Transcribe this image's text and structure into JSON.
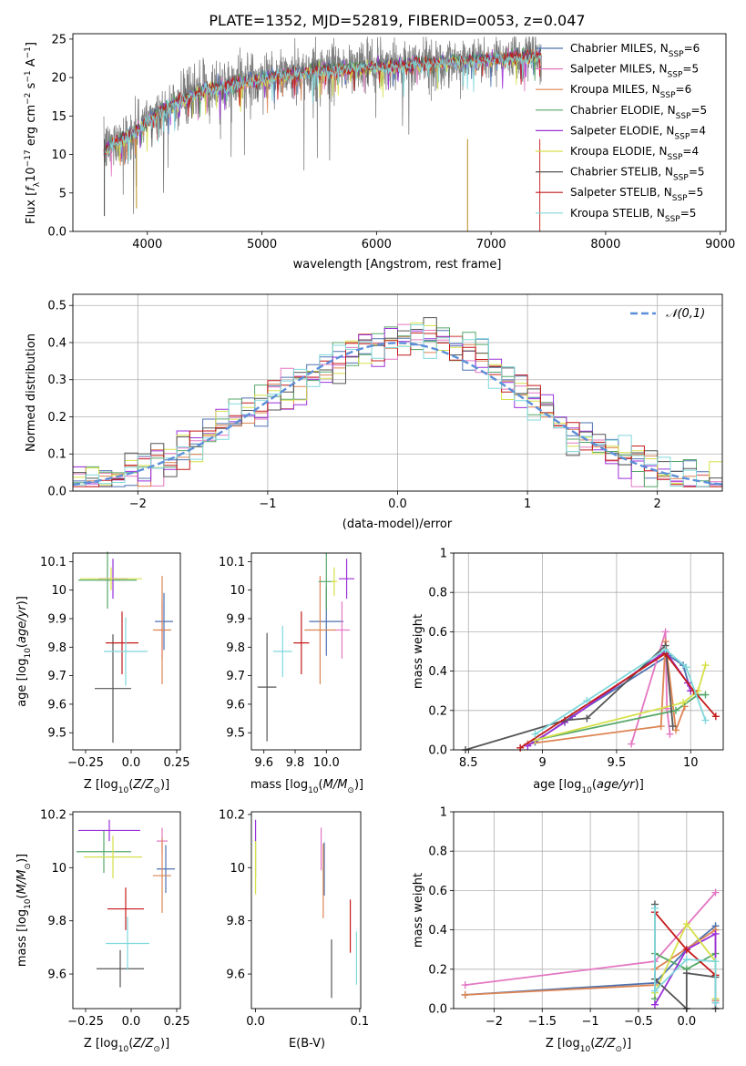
{
  "figure_title": "PLATE=1352, MJD=52819, FIBERID=0053, z=0.047",
  "colors": {
    "Chabrier MILES": "#4c72b0",
    "Salpeter MILES": "#e377c2",
    "Kroupa MILES": "#dd8452",
    "Chabrier ELODIE": "#55a868",
    "Salpeter ELODIE": "#9b30d9",
    "Kroupa ELODIE": "#d6e04a",
    "Chabrier STELIB": "#555555",
    "Salpeter STELIB": "#c41a1a",
    "Kroupa STELIB": "#80d8dc",
    "normal": "#5b8fd9",
    "spectrum": "#808080"
  },
  "legend_spectrum": [
    {
      "name": "Chabrier MILES",
      "nssp": "6"
    },
    {
      "name": "Salpeter MILES",
      "nssp": "5"
    },
    {
      "name": "Kroupa MILES",
      "nssp": "6"
    },
    {
      "name": "Chabrier ELODIE",
      "nssp": "5"
    },
    {
      "name": "Salpeter ELODIE",
      "nssp": "4"
    },
    {
      "name": "Kroupa ELODIE",
      "nssp": "4"
    },
    {
      "name": "Chabrier STELIB",
      "nssp": "5"
    },
    {
      "name": "Salpeter STELIB",
      "nssp": "5"
    },
    {
      "name": "Kroupa STELIB",
      "nssp": "5"
    }
  ],
  "chart_data": [
    {
      "id": "spectrum",
      "type": "line",
      "xlabel": "wavelength [Angstrom, rest frame]",
      "ylabel": "Flux [f_λ10^-17 erg cm^-2 s^-1 A^-1]",
      "xlim": [
        3350,
        9050
      ],
      "ylim": [
        0,
        25.7
      ],
      "xticks": [
        4000,
        5000,
        6000,
        7000,
        8000,
        9000
      ],
      "yticks": [
        0,
        5,
        10,
        15,
        20,
        25
      ],
      "x_range_data": [
        3620,
        7440
      ],
      "continuum": {
        "x": [
          3620,
          3700,
          3900,
          4000,
          4200,
          4500,
          5000,
          5500,
          6000,
          6500,
          7000,
          7440
        ],
        "y": [
          10.5,
          11.5,
          13.0,
          14.5,
          16.5,
          18.5,
          20.0,
          21.0,
          21.5,
          22.0,
          22.5,
          23.0
        ]
      },
      "grid": false
    },
    {
      "id": "residuals",
      "type": "histogram",
      "xlabel": "(data-model)/error",
      "ylabel": "Normed distribution",
      "xlim": [
        -2.5,
        2.5
      ],
      "ylim": [
        0,
        0.53
      ],
      "xticks": [
        -2,
        -1,
        0,
        1,
        2
      ],
      "yticks": [
        0.0,
        0.1,
        0.2,
        0.3,
        0.4,
        0.5
      ],
      "bin_width": 0.1,
      "normal_label": "𝒩(0,1)",
      "grid": true,
      "legend": "top-right"
    },
    {
      "id": "age_vs_Z",
      "type": "errorbar",
      "xlabel": "Z [log10(Z/Z☉)]",
      "ylabel": "age [log10(age/yr)]",
      "xlim": [
        -0.32,
        0.27
      ],
      "ylim": [
        9.44,
        10.13
      ],
      "xticks": [
        -0.25,
        0.0,
        0.25
      ],
      "yticks": [
        9.5,
        9.6,
        9.7,
        9.8,
        9.9,
        10.0,
        10.1
      ],
      "points": [
        {
          "series": "Chabrier MILES",
          "x": 0.18,
          "xerr": 0.05,
          "y": 9.89,
          "yerr": 0.1
        },
        {
          "series": "Salpeter MILES",
          "x": 0.17,
          "xerr": 0.02,
          "y": 9.86,
          "yerr": 0.1
        },
        {
          "series": "Kroupa MILES",
          "x": 0.17,
          "xerr": 0.05,
          "y": 9.86,
          "yerr": 0.19
        },
        {
          "series": "Chabrier ELODIE",
          "x": -0.13,
          "xerr": 0.16,
          "y": 10.035,
          "yerr": 0.1
        },
        {
          "series": "Salpeter ELODIE",
          "x": -0.1,
          "xerr": 0.08,
          "y": 10.04,
          "yerr": 0.07
        },
        {
          "series": "Kroupa ELODIE",
          "x": -0.11,
          "xerr": 0.17,
          "y": 10.04,
          "yerr": 0.04
        },
        {
          "series": "Chabrier STELIB",
          "x": -0.1,
          "xerr": 0.1,
          "y": 9.655,
          "yerr": 0.19
        },
        {
          "series": "Salpeter STELIB",
          "x": -0.05,
          "xerr": 0.09,
          "y": 9.815,
          "yerr": 0.11
        },
        {
          "series": "Kroupa STELIB",
          "x": -0.03,
          "xerr": 0.12,
          "y": 9.785,
          "yerr": 0.12
        }
      ]
    },
    {
      "id": "age_vs_mass",
      "type": "errorbar",
      "xlabel": "mass [log10(M/M☉)]",
      "xlim": [
        9.52,
        10.22
      ],
      "ylim": [
        9.44,
        10.13
      ],
      "xticks": [
        9.6,
        9.8,
        10.0
      ],
      "xticklabels": [
        "9.6",
        "9.8",
        "10.0"
      ],
      "yticks": [
        9.5,
        9.6,
        9.7,
        9.8,
        9.9,
        10.0,
        10.1
      ],
      "points": [
        {
          "series": "Chabrier MILES",
          "x": 10.0,
          "xerr": 0.11,
          "y": 9.89,
          "yerr": 0.12
        },
        {
          "series": "Salpeter MILES",
          "x": 10.1,
          "xerr": 0.05,
          "y": 9.86,
          "yerr": 0.1
        },
        {
          "series": "Kroupa MILES",
          "x": 9.96,
          "xerr": 0.1,
          "y": 9.86,
          "yerr": 0.19
        },
        {
          "series": "Chabrier ELODIE",
          "x": 10.0,
          "xerr": 0.05,
          "y": 10.03,
          "yerr": 0.1
        },
        {
          "series": "Salpeter ELODIE",
          "x": 10.13,
          "xerr": 0.05,
          "y": 10.04,
          "yerr": 0.07
        },
        {
          "series": "Kroupa ELODIE",
          "x": 10.05,
          "xerr": 0.02,
          "y": 10.03,
          "yerr": 0.05
        },
        {
          "series": "Chabrier STELIB",
          "x": 9.62,
          "xerr": 0.06,
          "y": 9.66,
          "yerr": 0.19
        },
        {
          "series": "Salpeter STELIB",
          "x": 9.84,
          "xerr": 0.05,
          "y": 9.815,
          "yerr": 0.11
        },
        {
          "series": "Kroupa STELIB",
          "x": 9.72,
          "xerr": 0.06,
          "y": 9.785,
          "yerr": 0.09
        }
      ]
    },
    {
      "id": "mass_weight_vs_age",
      "type": "line",
      "xlabel": "age [log10(age/yr)]",
      "ylabel": "mass weight",
      "xlim": [
        8.4,
        10.22
      ],
      "ylim": [
        0.0,
        1.0
      ],
      "xticks": [
        8.5,
        9.0,
        9.5,
        10.0
      ],
      "yticks": [
        0.0,
        0.2,
        0.4,
        0.6,
        0.8,
        1.0
      ],
      "grid": true,
      "series": [
        {
          "name": "Chabrier MILES",
          "x": [
            8.95,
            9.2,
            9.85,
            9.95,
            10.0
          ],
          "y": [
            0.04,
            0.17,
            0.48,
            0.43,
            0.3
          ]
        },
        {
          "name": "Salpeter MILES",
          "x": [
            9.6,
            9.83,
            9.84,
            9.86
          ],
          "y": [
            0.03,
            0.6,
            0.21,
            0.08
          ]
        },
        {
          "name": "Kroupa MILES",
          "x": [
            8.9,
            9.8,
            9.83,
            9.9,
            9.96
          ],
          "y": [
            0.03,
            0.12,
            0.55,
            0.1,
            0.22
          ]
        },
        {
          "name": "Chabrier ELODIE",
          "x": [
            8.95,
            9.9,
            10.05,
            10.1
          ],
          "y": [
            0.05,
            0.2,
            0.28,
            0.28
          ]
        },
        {
          "name": "Salpeter ELODIE",
          "x": [
            8.9,
            9.15,
            9.83,
            9.98,
            10.0
          ],
          "y": [
            0.02,
            0.14,
            0.5,
            0.34,
            0.3
          ]
        },
        {
          "name": "Kroupa ELODIE",
          "x": [
            8.95,
            9.95,
            10.05,
            10.1
          ],
          "y": [
            0.05,
            0.24,
            0.3,
            0.43
          ]
        },
        {
          "name": "Chabrier STELIB",
          "x": [
            8.48,
            9.15,
            9.3,
            9.83,
            9.88
          ],
          "y": [
            0.0,
            0.15,
            0.16,
            0.53,
            0.12
          ]
        },
        {
          "name": "Salpeter STELIB",
          "x": [
            8.85,
            9.83,
            10.02,
            10.17
          ],
          "y": [
            0.01,
            0.49,
            0.3,
            0.17
          ]
        },
        {
          "name": "Kroupa STELIB",
          "x": [
            8.95,
            9.3,
            9.83,
            9.97,
            10.1
          ],
          "y": [
            0.08,
            0.25,
            0.51,
            0.42,
            0.15
          ]
        }
      ]
    },
    {
      "id": "mass_vs_Z",
      "type": "errorbar",
      "xlabel": "Z [log10(Z/Z☉)]",
      "ylabel": "mass [log10(M/M☉)]",
      "xlim": [
        -0.32,
        0.27
      ],
      "ylim": [
        9.47,
        10.21
      ],
      "xticks": [
        -0.25,
        0.0,
        0.25
      ],
      "yticks": [
        9.6,
        9.8,
        10.0,
        10.2
      ],
      "points": [
        {
          "series": "Chabrier MILES",
          "x": 0.19,
          "xerr": 0.05,
          "y": 9.995,
          "yerr": 0.09
        },
        {
          "series": "Salpeter MILES",
          "x": 0.17,
          "xerr": 0.03,
          "y": 10.1,
          "yerr": 0.05
        },
        {
          "series": "Kroupa MILES",
          "x": 0.17,
          "xerr": 0.05,
          "y": 9.97,
          "yerr": 0.14
        },
        {
          "series": "Chabrier ELODIE",
          "x": -0.15,
          "xerr": 0.15,
          "y": 10.06,
          "yerr": 0.08
        },
        {
          "series": "Salpeter ELODIE",
          "x": -0.12,
          "xerr": 0.17,
          "y": 10.14,
          "yerr": 0.04
        },
        {
          "series": "Kroupa ELODIE",
          "x": -0.1,
          "xerr": 0.16,
          "y": 10.04,
          "yerr": 0.08
        },
        {
          "series": "Chabrier STELIB",
          "x": -0.06,
          "xerr": 0.13,
          "y": 9.62,
          "yerr": 0.07
        },
        {
          "series": "Salpeter STELIB",
          "x": -0.03,
          "xerr": 0.1,
          "y": 9.845,
          "yerr": 0.08
        },
        {
          "series": "Kroupa STELIB",
          "x": -0.02,
          "xerr": 0.12,
          "y": 9.715,
          "yerr": 0.1
        }
      ]
    },
    {
      "id": "mass_vs_ebv",
      "type": "errorbar",
      "xlabel": "E(B-V)",
      "xlim": [
        -0.004,
        0.101
      ],
      "ylim": [
        9.47,
        10.21
      ],
      "xticks": [
        0.0,
        0.1
      ],
      "xticklabels": [
        "0.0",
        "0.1"
      ],
      "yticks": [
        9.6,
        9.8,
        10.0,
        10.2
      ],
      "points": [
        {
          "series": "Chabrier MILES",
          "x": 0.066,
          "xerr": 0,
          "y": 9.995,
          "yerr": 0.1
        },
        {
          "series": "Salpeter MILES",
          "x": 0.063,
          "xerr": 0,
          "y": 10.07,
          "yerr": 0.08
        },
        {
          "series": "Kroupa MILES",
          "x": 0.065,
          "xerr": 0,
          "y": 9.95,
          "yerr": 0.14
        },
        {
          "series": "Chabrier ELODIE",
          "x": 0.0,
          "xerr": 0,
          "y": 10.03,
          "yerr": 0.07
        },
        {
          "series": "Salpeter ELODIE",
          "x": 0.0,
          "xerr": 0,
          "y": 10.14,
          "yerr": 0.04
        },
        {
          "series": "Kroupa ELODIE",
          "x": 0.0,
          "xerr": 0,
          "y": 10.0,
          "yerr": 0.1
        },
        {
          "series": "Chabrier STELIB",
          "x": 0.073,
          "xerr": 0,
          "y": 9.62,
          "yerr": 0.11
        },
        {
          "series": "Salpeter STELIB",
          "x": 0.091,
          "xerr": 0,
          "y": 9.78,
          "yerr": 0.1
        },
        {
          "series": "Kroupa STELIB",
          "x": 0.097,
          "xerr": 0,
          "y": 9.66,
          "yerr": 0.1
        }
      ]
    },
    {
      "id": "mass_weight_vs_Z",
      "type": "line",
      "xlabel": "Z [log10(Z/Z☉)]",
      "ylabel": "mass weight",
      "xlim": [
        -2.42,
        0.38
      ],
      "ylim": [
        0.0,
        1.0
      ],
      "xticks": [
        -2.0,
        -1.5,
        -1.0,
        -0.5,
        0.0
      ],
      "yticks": [
        0.0,
        0.2,
        0.4,
        0.6,
        0.8,
        1.0
      ],
      "grid": true,
      "series": [
        {
          "name": "Chabrier MILES",
          "x": [
            -2.3,
            -0.33,
            0.0,
            0.3,
            0.3
          ],
          "y": [
            0.07,
            0.13,
            0.3,
            0.42,
            0.05
          ]
        },
        {
          "name": "Salpeter MILES",
          "x": [
            -2.3,
            -0.33,
            0.3
          ],
          "y": [
            0.12,
            0.24,
            0.59
          ]
        },
        {
          "name": "Kroupa MILES",
          "x": [
            -2.3,
            -0.33,
            -0.33,
            0.3,
            0.3
          ],
          "y": [
            0.07,
            0.12,
            0.2,
            0.4,
            0.04
          ]
        },
        {
          "name": "Chabrier ELODIE",
          "x": [
            -0.33,
            -0.33,
            0.0,
            0.3
          ],
          "y": [
            0.05,
            0.28,
            0.2,
            0.28
          ]
        },
        {
          "name": "Salpeter ELODIE",
          "x": [
            -0.33,
            0.0,
            0.3,
            0.3
          ],
          "y": [
            0.02,
            0.3,
            0.38,
            0.03
          ]
        },
        {
          "name": "Kroupa ELODIE",
          "x": [
            -0.33,
            0.0,
            0.3,
            0.3
          ],
          "y": [
            0.08,
            0.43,
            0.24,
            0.05
          ]
        },
        {
          "name": "Chabrier STELIB",
          "x": [
            -0.33,
            -0.33,
            0.0,
            0.0,
            0.3,
            0.3
          ],
          "y": [
            0.53,
            0.15,
            0.0,
            0.18,
            0.16,
            0.0
          ]
        },
        {
          "name": "Salpeter STELIB",
          "x": [
            -0.33,
            0.0,
            0.3
          ],
          "y": [
            0.49,
            0.3,
            0.17
          ]
        },
        {
          "name": "Kroupa STELIB",
          "x": [
            -0.33,
            -0.33,
            0.0,
            0.3,
            0.3
          ],
          "y": [
            0.51,
            0.09,
            0.25,
            0.24,
            0.03
          ]
        }
      ]
    }
  ]
}
